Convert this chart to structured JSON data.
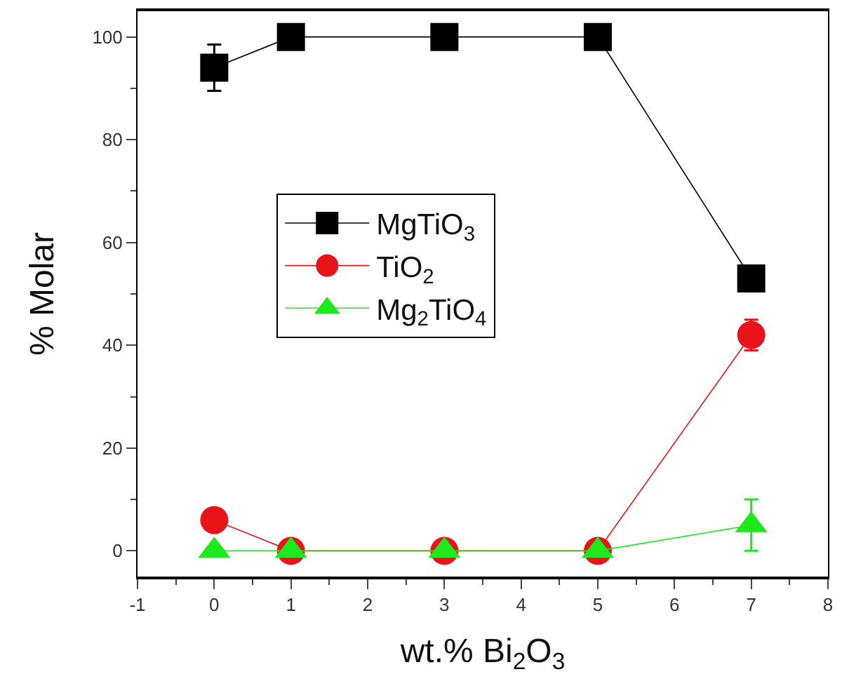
{
  "chart_data": {
    "type": "line",
    "xlabel": "wt.% Bi$_{2}$O$_{3}$",
    "ylabel": "% Molar",
    "x": [
      0,
      1,
      3,
      5,
      7
    ],
    "xlim": [
      -1,
      8
    ],
    "xticks": [
      -1,
      0,
      1,
      2,
      3,
      4,
      5,
      6,
      7,
      8
    ],
    "ylim": [
      -5,
      105
    ],
    "yticks": [
      0,
      20,
      40,
      60,
      80,
      100
    ],
    "legend": "center",
    "line_style": "solid",
    "series": [
      {
        "name": "MgTiO$_{3}$",
        "color": "#000000",
        "marker": "square",
        "values": [
          94,
          100,
          100,
          100,
          53
        ],
        "errors": [
          4.5,
          null,
          null,
          null,
          null
        ]
      },
      {
        "name": "TiO$_{2}$",
        "color": "#e8141a",
        "marker": "circle",
        "values": [
          6,
          0,
          0,
          0,
          42
        ],
        "errors": [
          null,
          null,
          null,
          null,
          3
        ]
      },
      {
        "name": "Mg$_{2}$TiO$_{4}$",
        "color": "#1ee81e",
        "marker": "triangle",
        "values": [
          0,
          0,
          0,
          0,
          5
        ],
        "errors": [
          null,
          null,
          null,
          null,
          5
        ]
      }
    ]
  }
}
